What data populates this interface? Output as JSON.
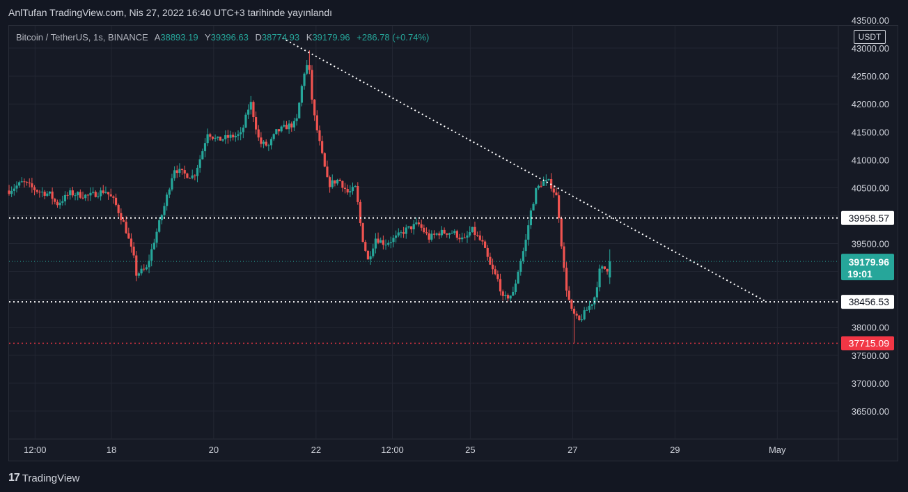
{
  "header": {
    "publish_text": "AnlTufan TradingView.com, Nis 27, 2022 16:40 UTC+3 tarihinde yayınlandı"
  },
  "legend": {
    "symbol": "Bitcoin / TetherUS, 1s, BINANCE",
    "open_label": "A",
    "open": "38893.19",
    "high_label": "Y",
    "high": "39396.63",
    "low_label": "D",
    "low": "38774.93",
    "close_label": "K",
    "close": "39179.96",
    "change": "+286.78 (+0.74%)"
  },
  "currency_button": "USDT",
  "footer": {
    "brand": "TradingView",
    "logo_text": "17"
  },
  "colors": {
    "up": "#26a69a",
    "down": "#ef5350",
    "background": "#161a25",
    "grid": "#232733",
    "level_line": "#ffffff",
    "low_line": "#f23645"
  },
  "chart_data": {
    "type": "candlestick",
    "ylim": [
      36000,
      43400
    ],
    "y_ticks": [
      "36500.00",
      "37000.00",
      "37500.00",
      "38000.00",
      "38500.00",
      "39000.00",
      "39500.00",
      "40000.00",
      "40500.00",
      "41000.00",
      "41500.00",
      "42000.00",
      "42500.00",
      "43000.00"
    ],
    "top_partial_tick": "43500.00",
    "x_ticks": [
      {
        "label": "12:00",
        "t": 1.7
      },
      {
        "label": "18",
        "t": 6.7
      },
      {
        "label": "20",
        "t": 13.4
      },
      {
        "label": "22",
        "t": 20.1
      },
      {
        "label": "12:00",
        "t": 25.1
      },
      {
        "label": "25",
        "t": 30.2
      },
      {
        "label": "27",
        "t": 36.9
      },
      {
        "label": "29",
        "t": 43.6
      },
      {
        "label": "May",
        "t": 50.3
      }
    ],
    "x_range": [
      0,
      54.3
    ],
    "price_series": [
      [
        0,
        40450
      ],
      [
        0.9,
        40600
      ],
      [
        1.8,
        40450
      ],
      [
        2.7,
        40380
      ],
      [
        3.1,
        40200
      ],
      [
        4.0,
        40400
      ],
      [
        5.2,
        40350
      ],
      [
        6.3,
        40450
      ],
      [
        6.9,
        40250
      ],
      [
        7.6,
        39800
      ],
      [
        8.2,
        39200
      ],
      [
        8.3,
        38950
      ],
      [
        9.0,
        39050
      ],
      [
        9.6,
        39650
      ],
      [
        10.2,
        40200
      ],
      [
        10.8,
        40850
      ],
      [
        11.4,
        40750
      ],
      [
        12.1,
        40700
      ],
      [
        12.6,
        41100
      ],
      [
        13.0,
        41500
      ],
      [
        13.6,
        41350
      ],
      [
        14.3,
        41400
      ],
      [
        15.2,
        41450
      ],
      [
        15.8,
        42050
      ],
      [
        16.4,
        41300
      ],
      [
        17.0,
        41250
      ],
      [
        17.5,
        41500
      ],
      [
        18.2,
        41600
      ],
      [
        18.8,
        41650
      ],
      [
        19.3,
        42550
      ],
      [
        19.6,
        42750
      ],
      [
        19.9,
        41900
      ],
      [
        20.4,
        41200
      ],
      [
        20.9,
        40550
      ],
      [
        21.6,
        40650
      ],
      [
        22.2,
        40400
      ],
      [
        22.7,
        40500
      ],
      [
        23.1,
        39650
      ],
      [
        23.5,
        39200
      ],
      [
        24.0,
        39600
      ],
      [
        24.6,
        39500
      ],
      [
        25.3,
        39600
      ],
      [
        26.0,
        39750
      ],
      [
        26.8,
        39850
      ],
      [
        27.5,
        39600
      ],
      [
        28.2,
        39700
      ],
      [
        29.1,
        39700
      ],
      [
        29.8,
        39550
      ],
      [
        30.3,
        39750
      ],
      [
        31.0,
        39500
      ],
      [
        31.5,
        39100
      ],
      [
        32.1,
        38800
      ],
      [
        32.3,
        38500
      ],
      [
        33.0,
        38600
      ],
      [
        33.4,
        39100
      ],
      [
        33.8,
        39500
      ],
      [
        34.1,
        40000
      ],
      [
        34.5,
        40450
      ],
      [
        34.9,
        40600
      ],
      [
        35.4,
        40600
      ],
      [
        35.9,
        40300
      ],
      [
        36.1,
        39700
      ],
      [
        36.3,
        39100
      ],
      [
        36.5,
        38700
      ],
      [
        36.8,
        38300
      ],
      [
        37.3,
        38100
      ],
      [
        37.8,
        38300
      ],
      [
        38.3,
        38500
      ],
      [
        38.7,
        39050
      ],
      [
        39.2,
        39050
      ],
      [
        39.4,
        39200
      ]
    ],
    "wick_extremes": {
      "high": {
        "t": 19.6,
        "price": 42960
      },
      "low": {
        "t": 37.0,
        "price": 37715.09
      }
    },
    "last_price": {
      "value": "39179.96",
      "countdown": "19:01",
      "price": 39179.96
    },
    "horizontal_levels": [
      {
        "label": "39958.57",
        "price": 39958.57,
        "style": "white-dotted"
      },
      {
        "label": "38456.53",
        "price": 38456.53,
        "style": "white-dotted"
      },
      {
        "label": "37715.09",
        "price": 37715.09,
        "style": "red-dotted"
      }
    ],
    "trendline": {
      "start": {
        "t": 17.9,
        "price": 43180
      },
      "end": {
        "t": 49.6,
        "price": 38456.53
      }
    }
  }
}
